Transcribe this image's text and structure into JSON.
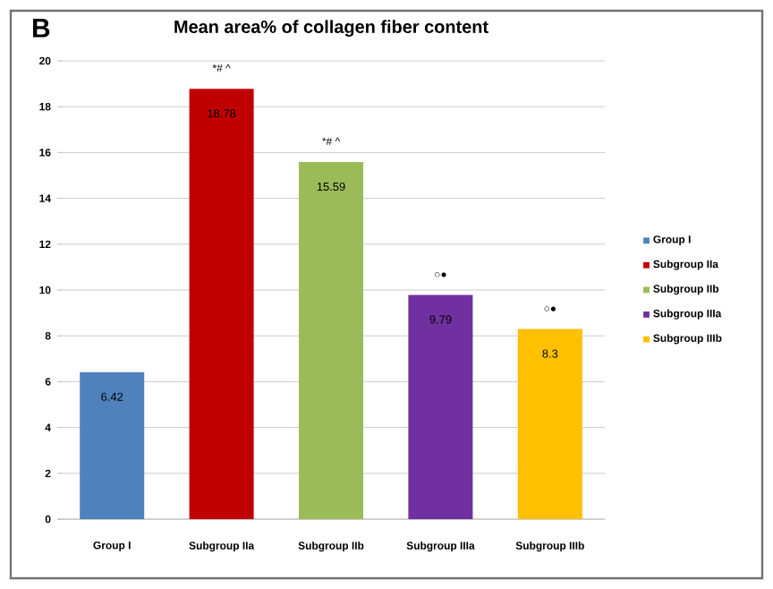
{
  "chart_data": {
    "type": "bar",
    "title": "Mean area% of collagen fiber content",
    "categories": [
      "Group I",
      "Subgroup IIa",
      "Subgroup  IIb",
      "Subgroup IIIa",
      "Subgroup  IIIb"
    ],
    "series": [
      {
        "name": "Group I",
        "color": "#4f81bd",
        "values": [
          6.42,
          null,
          null,
          null,
          null
        ]
      },
      {
        "name": "Subgroup IIa",
        "color": "#c00000",
        "values": [
          null,
          18.78,
          null,
          null,
          null
        ]
      },
      {
        "name": "Subgroup  IIb",
        "color": "#9bbb59",
        "values": [
          null,
          null,
          15.59,
          null,
          null
        ]
      },
      {
        "name": "Subgroup IIIa",
        "color": "#7030a0",
        "values": [
          null,
          null,
          null,
          9.79,
          null
        ]
      },
      {
        "name": "Subgroup  IIIb",
        "color": "#ffc000",
        "values": [
          null,
          null,
          null,
          null,
          8.3
        ]
      }
    ],
    "ylim": [
      0,
      20
    ],
    "yticks": [
      0,
      2,
      4,
      6,
      8,
      10,
      12,
      14,
      16,
      18,
      20
    ],
    "grid": "y",
    "legend": "right",
    "data_labels": true,
    "annotations": [
      "B",
      {
        "text": "*# ^",
        "x": "Subgroup IIa",
        "y": 18.78
      },
      {
        "text": "*# ^",
        "x": "Subgroup  IIb",
        "y": 15.59
      },
      {
        "text": "○●",
        "x": "Subgroup IIIa",
        "y": 9.79
      },
      {
        "text": "○●",
        "x": "Subgroup  IIIb",
        "y": 8.3
      }
    ]
  }
}
